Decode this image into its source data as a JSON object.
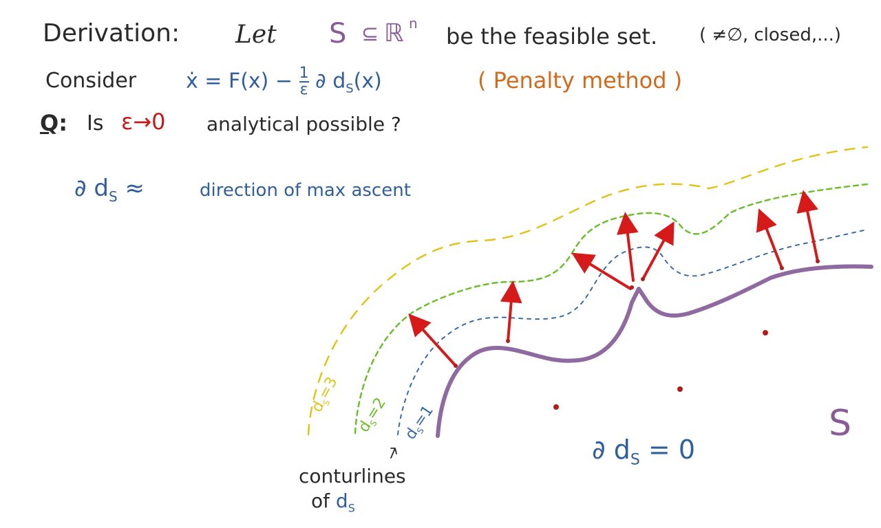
{
  "header": {
    "line1": {
      "derivation": "Derivation:",
      "let": "Let",
      "S": "S",
      "subset": "⊆",
      "Rn": "ℝ",
      "n": "n",
      "be": "be the feasible set.",
      "paren": "( ≠∅, closed,...)"
    },
    "line2": {
      "consider": "Consider",
      "equation": "ẋ = F(x) − ",
      "frac_num": "1",
      "frac_den": "ε",
      "grad": " ∂ d",
      "sub": "S",
      "arg": "(x)",
      "method": "( Penalty method )"
    },
    "line3": {
      "Q": "Q",
      "colon": ":",
      "is": "Is",
      "eps": "ε→0",
      "rest": "analytical possible ?"
    },
    "line4": {
      "grad": "∂ d",
      "sub": "S",
      "approx": " ≈",
      "desc": "direction of max ascent"
    }
  },
  "diagram": {
    "contour_labels": [
      {
        "text": "d",
        "sub": "S",
        "val": "=3",
        "color": "#e0c418"
      },
      {
        "text": "d",
        "sub": "S",
        "val": "=2",
        "color": "#6cbf2a"
      },
      {
        "text": "d",
        "sub": "S",
        "val": "=1",
        "color": "#3a6aa6"
      }
    ],
    "set_label": "S",
    "zero_label": {
      "grad": "∂ d",
      "sub": "S",
      "eq": " = 0"
    },
    "caption": {
      "line1": "conturlines",
      "line2": "of",
      "ds": "d",
      "sub": "S"
    },
    "colors": {
      "boundary": "#8e6aa0",
      "arrow": "#d61a1a",
      "dot": "#b31c1c",
      "yellow": "#e0c418",
      "green": "#6cbf2a",
      "blue": "#3a6aa6"
    }
  }
}
